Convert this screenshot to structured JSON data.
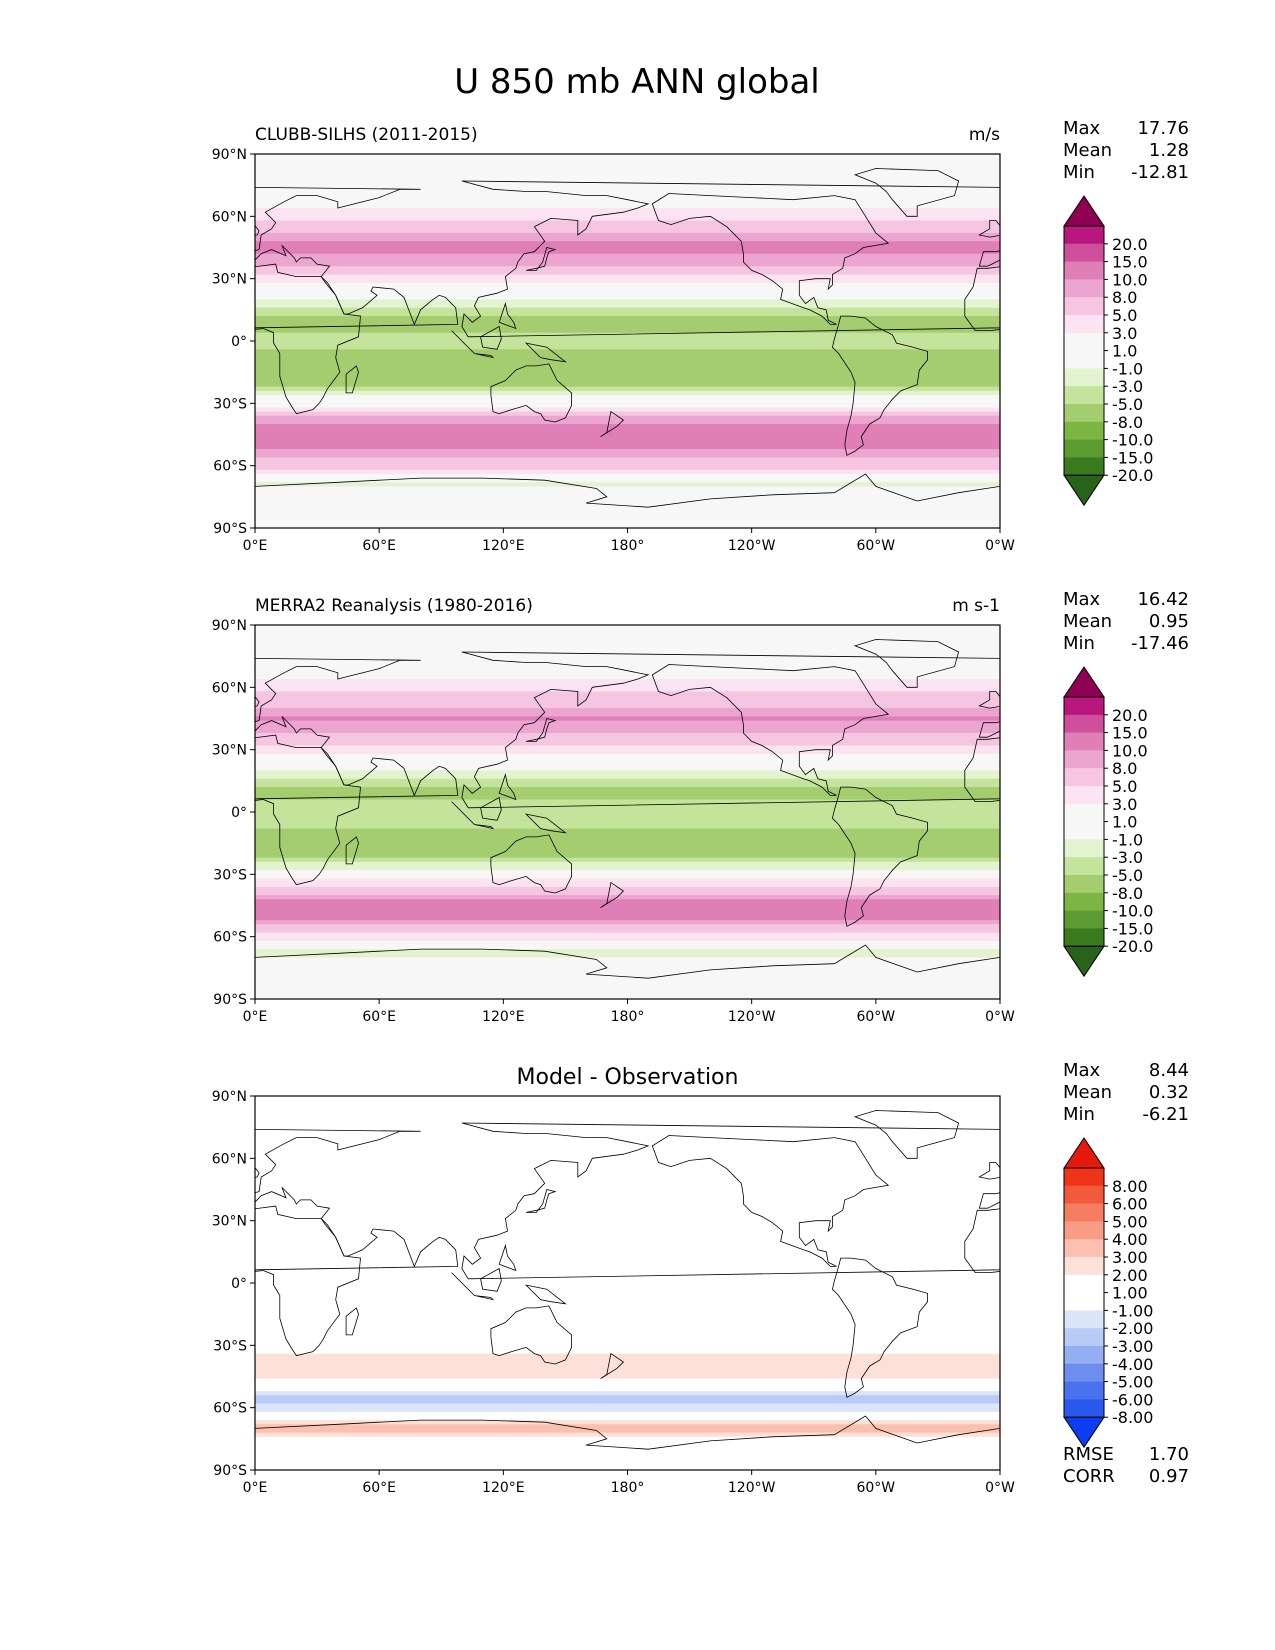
{
  "title": "U 850 mb ANN global",
  "y_ticks": [
    "90°N",
    "60°N",
    "30°N",
    "0°",
    "30°S",
    "60°S",
    "90°S"
  ],
  "x_ticks": [
    "0°E",
    "60°E",
    "120°E",
    "180°",
    "120°W",
    "60°W",
    "0°W"
  ],
  "colors": {
    "diverging_green_pink": [
      "#276419",
      "#3a7b1f",
      "#5b9b32",
      "#7db544",
      "#a3cd6e",
      "#c4e39b",
      "#e3f2cf",
      "#f7f7f7",
      "#f7f7f7",
      "#fbe3f1",
      "#f5c5e1",
      "#eca4d0",
      "#df7eb7",
      "#cf4f9c",
      "#b8177d",
      "#8e0152"
    ],
    "diverging_blue_red": [
      "#0d3df2",
      "#2a59f0",
      "#4a72ee",
      "#6d8df0",
      "#93aef3",
      "#b8cbf6",
      "#dbe5fa",
      "#ffffff",
      "#ffffff",
      "#fde0d8",
      "#fbc0b0",
      "#f89c86",
      "#f57d62",
      "#f25a3c",
      "#ef3418",
      "#e31a0c"
    ],
    "land_line": "#000000"
  },
  "chart_data": [
    {
      "type": "heatmap",
      "title": "CLUBB-SILHS (2011-2015)",
      "units": "m/s",
      "xlabel": "",
      "ylabel": "",
      "xlim": [
        0,
        360
      ],
      "ylim": [
        -90,
        90
      ],
      "stats": {
        "Max": "17.76",
        "Mean": "1.28",
        "Min": "-12.81"
      },
      "colorbar_levels": [
        "20.0",
        "15.0",
        "10.0",
        "8.0",
        "5.0",
        "3.0",
        "1.0",
        "-1.0",
        "-3.0",
        "-5.0",
        "-8.0",
        "-10.0",
        "-15.0",
        "-20.0"
      ],
      "colorbar_values": [
        -20,
        -15,
        -10,
        -8,
        -5,
        -3,
        -1,
        1,
        3,
        5,
        8,
        10,
        15,
        20
      ],
      "colormap": "diverging_green_pink",
      "grid": false,
      "zonal_profile": {
        "lat": [
          -90,
          -75,
          -68,
          -60,
          -52,
          -45,
          -38,
          -30,
          -22,
          -15,
          -8,
          0,
          8,
          15,
          22,
          30,
          38,
          45,
          52,
          60,
          68,
          75,
          90
        ],
        "u": [
          0,
          0.5,
          -2,
          6,
          10,
          13,
          9,
          2,
          -5,
          -7,
          -6,
          -4,
          -6,
          -4,
          0,
          4,
          9,
          11,
          8,
          4,
          2,
          1,
          0
        ]
      }
    },
    {
      "type": "heatmap",
      "title": "MERRA2 Reanalysis (1980-2016)",
      "units": "m s-1",
      "xlabel": "",
      "ylabel": "",
      "xlim": [
        0,
        360
      ],
      "ylim": [
        -90,
        90
      ],
      "stats": {
        "Max": "16.42",
        "Mean": "0.95",
        "Min": "-17.46"
      },
      "colorbar_levels": [
        "20.0",
        "15.0",
        "10.0",
        "8.0",
        "5.0",
        "3.0",
        "1.0",
        "-1.0",
        "-3.0",
        "-5.0",
        "-8.0",
        "-10.0",
        "-15.0",
        "-20.0"
      ],
      "colorbar_values": [
        -20,
        -15,
        -10,
        -8,
        -5,
        -3,
        -1,
        1,
        3,
        5,
        8,
        10,
        15,
        20
      ],
      "colormap": "diverging_green_pink",
      "grid": false,
      "zonal_profile": {
        "lat": [
          -90,
          -75,
          -68,
          -60,
          -52,
          -45,
          -38,
          -30,
          -22,
          -15,
          -8,
          0,
          8,
          15,
          22,
          30,
          38,
          45,
          52,
          60,
          68,
          75,
          90
        ],
        "u": [
          0,
          0.5,
          -2,
          4,
          10,
          12,
          7,
          1,
          -5,
          -7,
          -5,
          -3,
          -6,
          -4,
          0,
          4,
          8,
          10,
          7,
          4,
          2,
          1,
          0
        ]
      }
    },
    {
      "type": "heatmap",
      "title": "Model - Observation",
      "units": "",
      "xlabel": "",
      "ylabel": "",
      "xlim": [
        0,
        360
      ],
      "ylim": [
        -90,
        90
      ],
      "stats": {
        "Max": "8.44",
        "Mean": "0.32",
        "Min": "-6.21"
      },
      "extra_stats": {
        "RMSE": "1.70",
        "CORR": "0.97"
      },
      "colorbar_levels": [
        "8.00",
        "6.00",
        "5.00",
        "4.00",
        "3.00",
        "2.00",
        "1.00",
        "-1.00",
        "-2.00",
        "-3.00",
        "-4.00",
        "-5.00",
        "-6.00",
        "-8.00"
      ],
      "colorbar_values": [
        -8,
        -6,
        -5,
        -4,
        -3,
        -2,
        -1,
        1,
        2,
        3,
        4,
        5,
        6,
        8
      ],
      "colormap": "diverging_blue_red",
      "grid": false,
      "zonal_profile": {
        "lat": [
          -90,
          -75,
          -70,
          -62,
          -55,
          -48,
          -42,
          -35,
          -25,
          -15,
          -8,
          0,
          10,
          20,
          30,
          40,
          50,
          60,
          70,
          90
        ],
        "u": [
          0,
          1.5,
          4,
          -1,
          -3,
          1,
          3,
          2,
          0.5,
          -0.5,
          -1,
          -1,
          0,
          0.5,
          1,
          0.5,
          0,
          -0.5,
          0,
          0
        ]
      }
    }
  ]
}
